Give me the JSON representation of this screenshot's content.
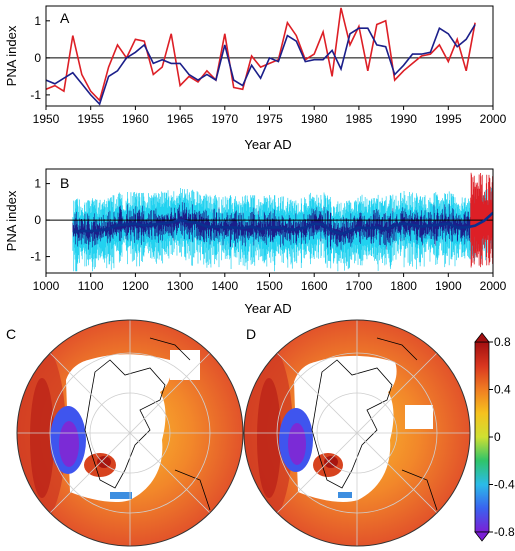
{
  "colors": {
    "recon": "#1b1f8a",
    "obs": "#dd1f26",
    "ensemble": "#22d2f0",
    "smooth": "#0a2f8f",
    "zero": "#000000"
  },
  "chart_data": [
    {
      "id": "A",
      "type": "line",
      "panel_label": "A",
      "xlabel": "Year  AD",
      "ylabel": "PNA index",
      "xlim": [
        1950,
        2000
      ],
      "ylim": [
        -1.3,
        1.4
      ],
      "xticks": [
        1950,
        1955,
        1960,
        1965,
        1970,
        1975,
        1980,
        1985,
        1990,
        1995,
        2000
      ],
      "yticks": [
        -1,
        0,
        1
      ],
      "x": [
        1950,
        1951,
        1952,
        1953,
        1954,
        1955,
        1956,
        1957,
        1958,
        1959,
        1960,
        1961,
        1962,
        1963,
        1964,
        1965,
        1966,
        1967,
        1968,
        1969,
        1970,
        1971,
        1972,
        1973,
        1974,
        1975,
        1976,
        1977,
        1978,
        1979,
        1980,
        1981,
        1982,
        1983,
        1984,
        1985,
        1986,
        1987,
        1988,
        1989,
        1990,
        1991,
        1992,
        1993,
        1994,
        1995,
        1996,
        1997,
        1998
      ],
      "series": [
        {
          "values": [
            -0.6,
            -0.7,
            -0.55,
            -0.4,
            -0.7,
            -1.0,
            -1.25,
            -0.5,
            -0.35,
            0.0,
            0.15,
            0.35,
            -0.15,
            -0.05,
            -0.15,
            -0.15,
            -0.45,
            -0.6,
            -0.45,
            -0.6,
            0.35,
            -0.6,
            -0.75,
            -0.2,
            -0.55,
            0.0,
            -0.1,
            0.6,
            0.45,
            -0.1,
            -0.05,
            -0.05,
            0.2,
            -0.3,
            0.65,
            0.8,
            0.8,
            0.35,
            0.3,
            -0.45,
            -0.2,
            0.1,
            0.1,
            0.15,
            0.8,
            0.65,
            0.3,
            0.5,
            0.9
          ]
        },
        {
          "values": [
            -0.85,
            -0.75,
            -0.9,
            0.6,
            -0.45,
            -0.9,
            -1.15,
            -0.25,
            0.35,
            0.0,
            0.5,
            0.45,
            -0.45,
            -0.25,
            0.65,
            -0.75,
            -0.5,
            -0.65,
            -0.35,
            -0.6,
            0.65,
            -0.8,
            -0.85,
            0.05,
            -0.25,
            -0.15,
            -0.05,
            0.95,
            0.6,
            -0.05,
            0.1,
            0.7,
            -0.5,
            1.35,
            0.35,
            0.85,
            -0.35,
            0.9,
            1.0,
            -0.6,
            -0.35,
            -0.15,
            0.05,
            0.1,
            0.35,
            -0.1,
            0.5,
            -0.35,
            0.95
          ]
        }
      ]
    },
    {
      "id": "B",
      "type": "line",
      "panel_label": "B",
      "xlabel": "Year AD",
      "ylabel": "PNA index",
      "xlim": [
        1000,
        2000
      ],
      "ylim": [
        -1.45,
        1.4
      ],
      "xticks": [
        1000,
        1100,
        1200,
        1300,
        1400,
        1500,
        1600,
        1700,
        1800,
        1900,
        2000
      ],
      "yticks": [
        -1,
        0,
        1
      ],
      "recon_period": [
        1060,
        1998
      ],
      "obs_period": [
        1950,
        2000
      ],
      "smooth": {
        "x": [
          1060,
          1080,
          1100,
          1120,
          1140,
          1160,
          1180,
          1200,
          1220,
          1240,
          1260,
          1280,
          1300,
          1320,
          1340,
          1360,
          1380,
          1400,
          1420,
          1440,
          1460,
          1480,
          1500,
          1520,
          1540,
          1560,
          1580,
          1600,
          1620,
          1640,
          1660,
          1680,
          1700,
          1720,
          1740,
          1760,
          1780,
          1800,
          1820,
          1840,
          1860,
          1880,
          1900,
          1920,
          1940,
          1960,
          1980,
          2000
        ],
        "values": [
          -0.32,
          -0.3,
          -0.3,
          -0.28,
          -0.24,
          -0.14,
          -0.12,
          -0.1,
          -0.15,
          -0.12,
          -0.1,
          -0.06,
          0.0,
          -0.05,
          -0.08,
          -0.18,
          -0.18,
          -0.2,
          -0.2,
          -0.22,
          -0.18,
          -0.25,
          -0.2,
          -0.2,
          -0.25,
          -0.26,
          -0.2,
          -0.1,
          -0.12,
          -0.3,
          -0.38,
          -0.3,
          -0.2,
          -0.22,
          -0.2,
          -0.25,
          -0.15,
          -0.1,
          -0.13,
          -0.18,
          -0.15,
          -0.12,
          -0.1,
          -0.2,
          -0.2,
          -0.15,
          -0.02,
          0.2
        ]
      }
    },
    {
      "id": "C",
      "type": "heatmap",
      "panel_label": "C",
      "projection": "polar-stereographic"
    },
    {
      "id": "D",
      "type": "heatmap",
      "panel_label": "D",
      "projection": "polar-stereographic"
    }
  ],
  "colorbar": {
    "ticks": [
      "0.8",
      "0.4",
      "0",
      "-0.4",
      "-0.8"
    ],
    "range": [
      -0.8,
      0.8
    ],
    "stops": [
      "#7b1fd6",
      "#3a62f0",
      "#2bbbe8",
      "#2fc46a",
      "#cfe032",
      "#f6c21e",
      "#f07d22",
      "#d9361f",
      "#a20f10"
    ]
  }
}
